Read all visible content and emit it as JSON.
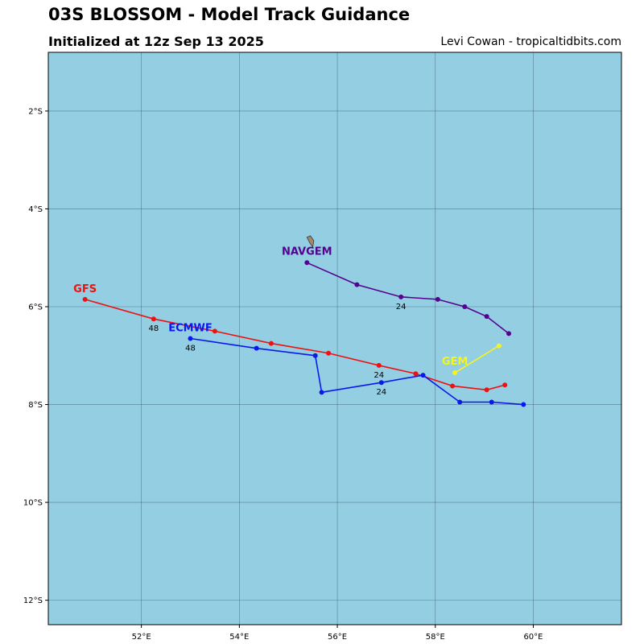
{
  "header": {
    "title": "03S BLOSSOM - Model Track Guidance",
    "subtitle": "Initialized at 12z Sep 13 2025",
    "credit": "Levi Cowan - tropicaltidbits.com"
  },
  "map": {
    "ocean_color": "#94cee3",
    "land_color": "#a08a6a",
    "grid_color": "#40606a",
    "lon_range": [
      50.1,
      61.8
    ],
    "lat_range": [
      -12.5,
      -0.8
    ],
    "lon_ticks": [
      52,
      54,
      56,
      58,
      60
    ],
    "lon_tick_labels": [
      "52°E",
      "54°E",
      "56°E",
      "58°E",
      "60°E"
    ],
    "lat_ticks": [
      -2,
      -4,
      -6,
      -8,
      -10,
      -12
    ],
    "lat_tick_labels": [
      "2°S",
      "4°S",
      "6°S",
      "8°S",
      "10°S",
      "12°S"
    ],
    "island": {
      "name": "island",
      "polygon": [
        [
          55.38,
          -4.58
        ],
        [
          55.45,
          -4.55
        ],
        [
          55.52,
          -4.65
        ],
        [
          55.5,
          -4.78
        ],
        [
          55.44,
          -4.7
        ]
      ]
    }
  },
  "chart_data": {
    "type": "line",
    "series": [
      {
        "name": "GFS",
        "color": "#ee1111",
        "points": [
          [
            59.42,
            -7.6
          ],
          [
            59.05,
            -7.7
          ],
          [
            58.35,
            -7.62
          ],
          [
            57.6,
            -7.37
          ],
          [
            56.85,
            -7.2
          ],
          [
            55.82,
            -6.95
          ],
          [
            54.65,
            -6.75
          ],
          [
            53.5,
            -6.5
          ],
          [
            52.25,
            -6.25
          ],
          [
            50.85,
            -5.85
          ]
        ],
        "hour_labels": [
          {
            "hour": "24",
            "point": 4
          },
          {
            "hour": "48",
            "point": 8
          }
        ]
      },
      {
        "name": "ECMWF",
        "color": "#0a18ee",
        "points": [
          [
            59.8,
            -8.0
          ],
          [
            59.15,
            -7.95
          ],
          [
            58.5,
            -7.95
          ],
          [
            57.75,
            -7.4
          ],
          [
            56.9,
            -7.55
          ],
          [
            55.68,
            -7.75
          ],
          [
            55.55,
            -7.0
          ],
          [
            54.35,
            -6.85
          ],
          [
            53.0,
            -6.65
          ]
        ],
        "hour_labels": [
          {
            "hour": "24",
            "point": 4
          },
          {
            "hour": "48",
            "point": 8
          }
        ]
      },
      {
        "name": "NAVGEM",
        "color": "#580090",
        "points": [
          [
            59.5,
            -6.55
          ],
          [
            59.05,
            -6.2
          ],
          [
            58.6,
            -6.0
          ],
          [
            58.05,
            -5.85
          ],
          [
            57.3,
            -5.8
          ],
          [
            56.4,
            -5.55
          ],
          [
            55.38,
            -5.1
          ]
        ],
        "hour_labels": [
          {
            "hour": "24",
            "point": 4
          }
        ]
      },
      {
        "name": "GEM",
        "color": "#f5f51a",
        "points": [
          [
            59.3,
            -6.8
          ],
          [
            58.4,
            -7.35
          ]
        ],
        "hour_labels": []
      }
    ]
  }
}
